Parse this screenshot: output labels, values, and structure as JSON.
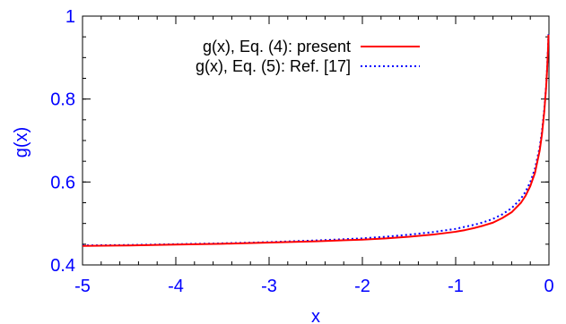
{
  "chart_data": {
    "type": "line",
    "title": "",
    "xlabel": "x",
    "ylabel": "g(x)",
    "xlim": [
      -5,
      0
    ],
    "ylim": [
      0.4,
      1.0
    ],
    "x_ticks": [
      "-5",
      "-4",
      "-3",
      "-2",
      "-1",
      "0"
    ],
    "y_ticks": [
      "0.4",
      "0.6",
      "0.8",
      "1"
    ],
    "x_tick_values": [
      -5,
      -4,
      -3,
      -2,
      -1,
      0
    ],
    "y_tick_values": [
      0.4,
      0.6,
      0.8,
      1.0
    ],
    "grid": false,
    "legend_position": "top-right",
    "series": [
      {
        "name": "g(x), Eq. (4):  present",
        "color": "#ff0000",
        "style": "solid",
        "x": [
          -5,
          -4.5,
          -4,
          -3.5,
          -3,
          -2.5,
          -2,
          -1.75,
          -1.5,
          -1.25,
          -1,
          -0.9,
          -0.8,
          -0.7,
          -0.6,
          -0.5,
          -0.4,
          -0.3,
          -0.25,
          -0.2,
          -0.15,
          -0.1,
          -0.075,
          -0.05,
          -0.03,
          -0.02,
          -0.01,
          -0.005
        ],
        "y": [
          0.446,
          0.447,
          0.449,
          0.451,
          0.454,
          0.457,
          0.461,
          0.464,
          0.468,
          0.473,
          0.48,
          0.484,
          0.489,
          0.495,
          0.502,
          0.513,
          0.527,
          0.55,
          0.567,
          0.59,
          0.622,
          0.675,
          0.715,
          0.77,
          0.83,
          0.87,
          0.92,
          0.955
        ]
      },
      {
        "name": "g(x), Eq. (5):  Ref. [17]",
        "color": "#0000ff",
        "style": "dotted",
        "x": [
          -5,
          -4.5,
          -4,
          -3.5,
          -3,
          -2.5,
          -2,
          -1.75,
          -1.5,
          -1.25,
          -1,
          -0.9,
          -0.8,
          -0.7,
          -0.6,
          -0.5,
          -0.4,
          -0.3,
          -0.25,
          -0.2,
          -0.15,
          -0.1,
          -0.075,
          -0.05,
          -0.03,
          -0.02,
          -0.01,
          -0.005
        ],
        "y": [
          0.447,
          0.448,
          0.45,
          0.452,
          0.455,
          0.459,
          0.464,
          0.468,
          0.473,
          0.479,
          0.487,
          0.492,
          0.497,
          0.503,
          0.511,
          0.522,
          0.537,
          0.56,
          0.577,
          0.6,
          0.632,
          0.683,
          0.722,
          0.775,
          0.832,
          0.872,
          0.922,
          0.958
        ]
      }
    ]
  }
}
